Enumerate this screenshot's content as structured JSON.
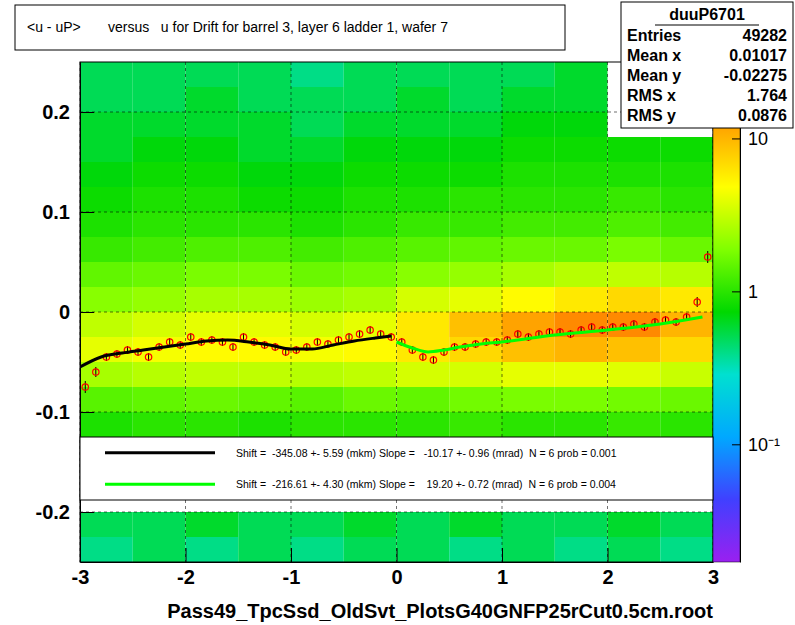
{
  "chart_data": {
    "type": "heatmap",
    "title": "<u - uP>       versus   u for Drift for barrel 3, layer 6 ladder 1, wafer 7",
    "x_label": "Pass49_TpcSsd_OldSvt_PlotsG40GNFP25rCut0.5cm.root",
    "xlim": [
      -3,
      3
    ],
    "xticks": [
      -3,
      -2,
      -1,
      0,
      1,
      2,
      3
    ],
    "ylim": [
      -0.25,
      0.25
    ],
    "yticks": [
      -0.2,
      -0.1,
      0,
      0.1,
      0.2
    ],
    "grid": true,
    "legend": "bottom",
    "heatmap": {
      "x_bins": [
        -3,
        -2.5,
        -2,
        -1.5,
        -1,
        -0.5,
        0,
        0.5,
        1,
        1.5,
        2,
        2.5,
        3
      ],
      "y_bins": [
        -0.25,
        -0.225,
        -0.2,
        -0.175,
        -0.15,
        -0.125,
        -0.1,
        -0.075,
        -0.05,
        -0.025,
        0,
        0.025,
        0.05,
        0.075,
        0.1,
        0.125,
        0.15,
        0.175,
        0.2,
        0.225,
        0.25
      ],
      "cells": [
        [
          0.4,
          0.5,
          0.4,
          0.5,
          0.4,
          0.5,
          0.5,
          0.4,
          0.5,
          0.4,
          0.5,
          0.4
        ],
        [
          0.5,
          0.5,
          0.6,
          0.5,
          0.5,
          0.6,
          0.5,
          0.6,
          0.5,
          0.5,
          0.6,
          0.5
        ],
        [
          null,
          null,
          null,
          null,
          null,
          null,
          null,
          null,
          null,
          null,
          null,
          null
        ],
        [
          null,
          null,
          null,
          null,
          null,
          null,
          null,
          null,
          null,
          null,
          null,
          null
        ],
        [
          null,
          null,
          null,
          null,
          null,
          null,
          null,
          null,
          null,
          null,
          null,
          null
        ],
        [
          0.9,
          1,
          1,
          0.9,
          1,
          1,
          1,
          1.1,
          1,
          1,
          1.1,
          1
        ],
        [
          1.4,
          1.5,
          1.6,
          1.5,
          1.4,
          1.6,
          1.5,
          1.7,
          1.8,
          1.8,
          1.7,
          1.6
        ],
        [
          2.5,
          2.8,
          3,
          3,
          2.8,
          3,
          3.5,
          3.5,
          4,
          4,
          3.8,
          3.2
        ],
        [
          4,
          4.5,
          5,
          5,
          4.5,
          5,
          6,
          7,
          9,
          10,
          9,
          7
        ],
        [
          3,
          3.5,
          4,
          4,
          3.5,
          4,
          6,
          9,
          12,
          14,
          14,
          10
        ],
        [
          2,
          2.2,
          2.5,
          2.5,
          2.3,
          2.5,
          3.5,
          4,
          5,
          6,
          7,
          6
        ],
        [
          1.5,
          1.6,
          1.8,
          1.8,
          1.6,
          1.7,
          2,
          2.2,
          2.5,
          2.8,
          3,
          2.8
        ],
        [
          1.1,
          1.2,
          1.3,
          1.3,
          1.2,
          1.3,
          1.4,
          1.5,
          1.6,
          1.6,
          1.8,
          1.6
        ],
        [
          0.9,
          1,
          1,
          1,
          0.9,
          1,
          1.1,
          1.1,
          1.2,
          1.2,
          1.3,
          1.2
        ],
        [
          0.8,
          0.9,
          0.9,
          0.8,
          0.8,
          0.9,
          0.9,
          1,
          1,
          1,
          1.1,
          1
        ],
        [
          0.7,
          0.8,
          0.8,
          0.7,
          0.7,
          0.8,
          0.8,
          0.8,
          0.9,
          0.9,
          0.9,
          0.9
        ],
        [
          0.6,
          0.7,
          0.7,
          0.6,
          0.6,
          0.7,
          0.7,
          0.7,
          0.8,
          0.8,
          0.8,
          0.8
        ],
        [
          0.6,
          0.6,
          0.6,
          0.6,
          0.5,
          0.6,
          0.6,
          0.6,
          0.7,
          0.7,
          null,
          null
        ],
        [
          0.5,
          0.5,
          0.6,
          0.5,
          0.5,
          0.5,
          0.6,
          0.5,
          0.6,
          0.6,
          null,
          null
        ],
        [
          0.5,
          0.5,
          0.5,
          0.5,
          0.4,
          0.5,
          0.5,
          0.5,
          0.5,
          0.6,
          null,
          null
        ]
      ],
      "colorbar_range": [
        0.017,
        31.6
      ],
      "colorbar_ticks": [
        {
          "value": 0.1,
          "label": "10⁻¹"
        },
        1,
        10
      ],
      "log": true
    },
    "series": [
      {
        "type": "scatter",
        "color": "#ff0000",
        "marker": "circle-open",
        "x": [
          -2.95,
          -2.85,
          -2.75,
          -2.65,
          -2.55,
          -2.45,
          -2.35,
          -2.25,
          -2.15,
          -2.05,
          -1.95,
          -1.85,
          -1.75,
          -1.65,
          -1.55,
          -1.45,
          -1.35,
          -1.25,
          -1.15,
          -1.05,
          -0.95,
          -0.85,
          -0.75,
          -0.65,
          -0.55,
          -0.45,
          -0.35,
          -0.25,
          -0.15,
          -0.05,
          0.05,
          0.15,
          0.25,
          0.35,
          0.45,
          0.55,
          0.65,
          0.75,
          0.85,
          0.95,
          1.05,
          1.15,
          1.25,
          1.35,
          1.45,
          1.55,
          1.65,
          1.75,
          1.85,
          1.95,
          2.05,
          2.15,
          2.25,
          2.35,
          2.45,
          2.55,
          2.65,
          2.75,
          2.85,
          2.95
        ],
        "values": [
          -0.075,
          -0.06,
          -0.045,
          -0.042,
          -0.038,
          -0.04,
          -0.045,
          -0.035,
          -0.03,
          -0.033,
          -0.025,
          -0.03,
          -0.028,
          -0.03,
          -0.035,
          -0.025,
          -0.03,
          -0.033,
          -0.035,
          -0.04,
          -0.038,
          -0.035,
          -0.03,
          -0.032,
          -0.028,
          -0.025,
          -0.022,
          -0.018,
          -0.022,
          -0.025,
          -0.03,
          -0.038,
          -0.045,
          -0.048,
          -0.04,
          -0.035,
          -0.035,
          -0.032,
          -0.03,
          -0.03,
          -0.028,
          -0.022,
          -0.025,
          -0.022,
          -0.02,
          -0.02,
          -0.022,
          -0.018,
          -0.015,
          -0.018,
          -0.015,
          -0.015,
          -0.012,
          -0.015,
          -0.01,
          -0.008,
          -0.01,
          -0.005,
          0.01,
          0.055
        ],
        "errors": [
          0.006,
          0.005,
          0.004,
          0.004,
          0.004,
          0.004,
          0.004,
          0.004,
          0.004,
          0.004,
          0.004,
          0.004,
          0.004,
          0.004,
          0.004,
          0.004,
          0.004,
          0.004,
          0.004,
          0.004,
          0.004,
          0.004,
          0.004,
          0.004,
          0.004,
          0.004,
          0.004,
          0.004,
          0.004,
          0.004,
          0.004,
          0.004,
          0.004,
          0.004,
          0.004,
          0.004,
          0.004,
          0.004,
          0.004,
          0.004,
          0.004,
          0.004,
          0.004,
          0.004,
          0.004,
          0.004,
          0.004,
          0.004,
          0.004,
          0.004,
          0.004,
          0.004,
          0.004,
          0.004,
          0.004,
          0.004,
          0.004,
          0.004,
          0.005,
          0.006
        ]
      },
      {
        "type": "line",
        "color": "#000000",
        "name": "Shift =  -345.08 +- 5.59 (mkm) Slope =   -10.17 +- 0.96 (mrad)  N = 6 prob = 0.001",
        "x": [
          -3,
          -2.8,
          -2.6,
          -2.4,
          -2.2,
          -2,
          -1.8,
          -1.6,
          -1.4,
          -1.2,
          -1,
          -0.8,
          -0.6,
          -0.4,
          -0.2,
          -0.05
        ],
        "values": [
          -0.055,
          -0.045,
          -0.041,
          -0.038,
          -0.035,
          -0.032,
          -0.029,
          -0.028,
          -0.03,
          -0.033,
          -0.037,
          -0.037,
          -0.033,
          -0.029,
          -0.026,
          -0.024
        ]
      },
      {
        "type": "line",
        "color": "#00ff00",
        "name": "Shift =  -216.61 +- 4.30 (mkm) Slope =    19.20 +- 0.72 (mrad)  N = 6 prob = 0.004",
        "x": [
          0,
          0.15,
          0.3,
          0.45,
          0.6,
          0.8,
          1,
          1.5,
          2,
          2.5,
          2.9
        ],
        "values": [
          -0.03,
          -0.036,
          -0.04,
          -0.038,
          -0.035,
          -0.032,
          -0.03,
          -0.023,
          -0.018,
          -0.012,
          -0.005
        ]
      }
    ],
    "stats": {
      "title": "duuP6701",
      "rows": [
        {
          "label": "Entries",
          "value": 49282
        },
        {
          "label": "Mean x",
          "value": 0.01017
        },
        {
          "label": "Mean y",
          "value": -0.02275
        },
        {
          "label": "RMS x",
          "value": 1.764
        },
        {
          "label": "RMS y",
          "value": 0.0876
        }
      ]
    }
  }
}
